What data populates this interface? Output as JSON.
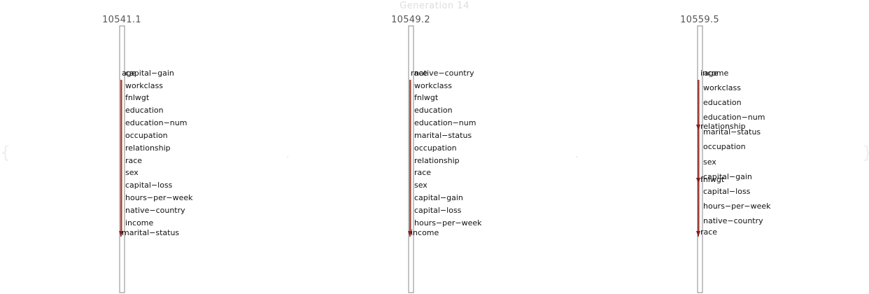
{
  "title": "Generation 14",
  "colors": {
    "edge_main": "#8b1a1a",
    "edge_light": "#c98a6a",
    "frame": "#888888",
    "text": "#111111",
    "score": "#555555",
    "title": "#dddddd"
  },
  "columns": [
    {
      "score": "10541.1",
      "nodes": [
        "age",
        "capital−gain",
        "workclass",
        "fnlwgt",
        "education",
        "education−num",
        "occupation",
        "relationship",
        "race",
        "sex",
        "capital−loss",
        "hours−per−week",
        "native−country",
        "income",
        "marital−status"
      ]
    },
    {
      "score": "10549.2",
      "nodes": [
        "race",
        "native−country",
        "workclass",
        "fnlwgt",
        "education",
        "education−num",
        "marital−status",
        "occupation",
        "relationship",
        "race",
        "sex",
        "capital−gain",
        "capital−loss",
        "hours−per−week",
        "income"
      ]
    },
    {
      "score": "10559.5",
      "nodes": [
        "income",
        "age",
        "workclass",
        "education",
        "education−num",
        "relationship",
        "marital−status",
        "occupation",
        "sex",
        "capital−gain",
        "fnlwgt",
        "capital−loss",
        "hours−per−week",
        "native−country",
        "race"
      ]
    }
  ]
}
